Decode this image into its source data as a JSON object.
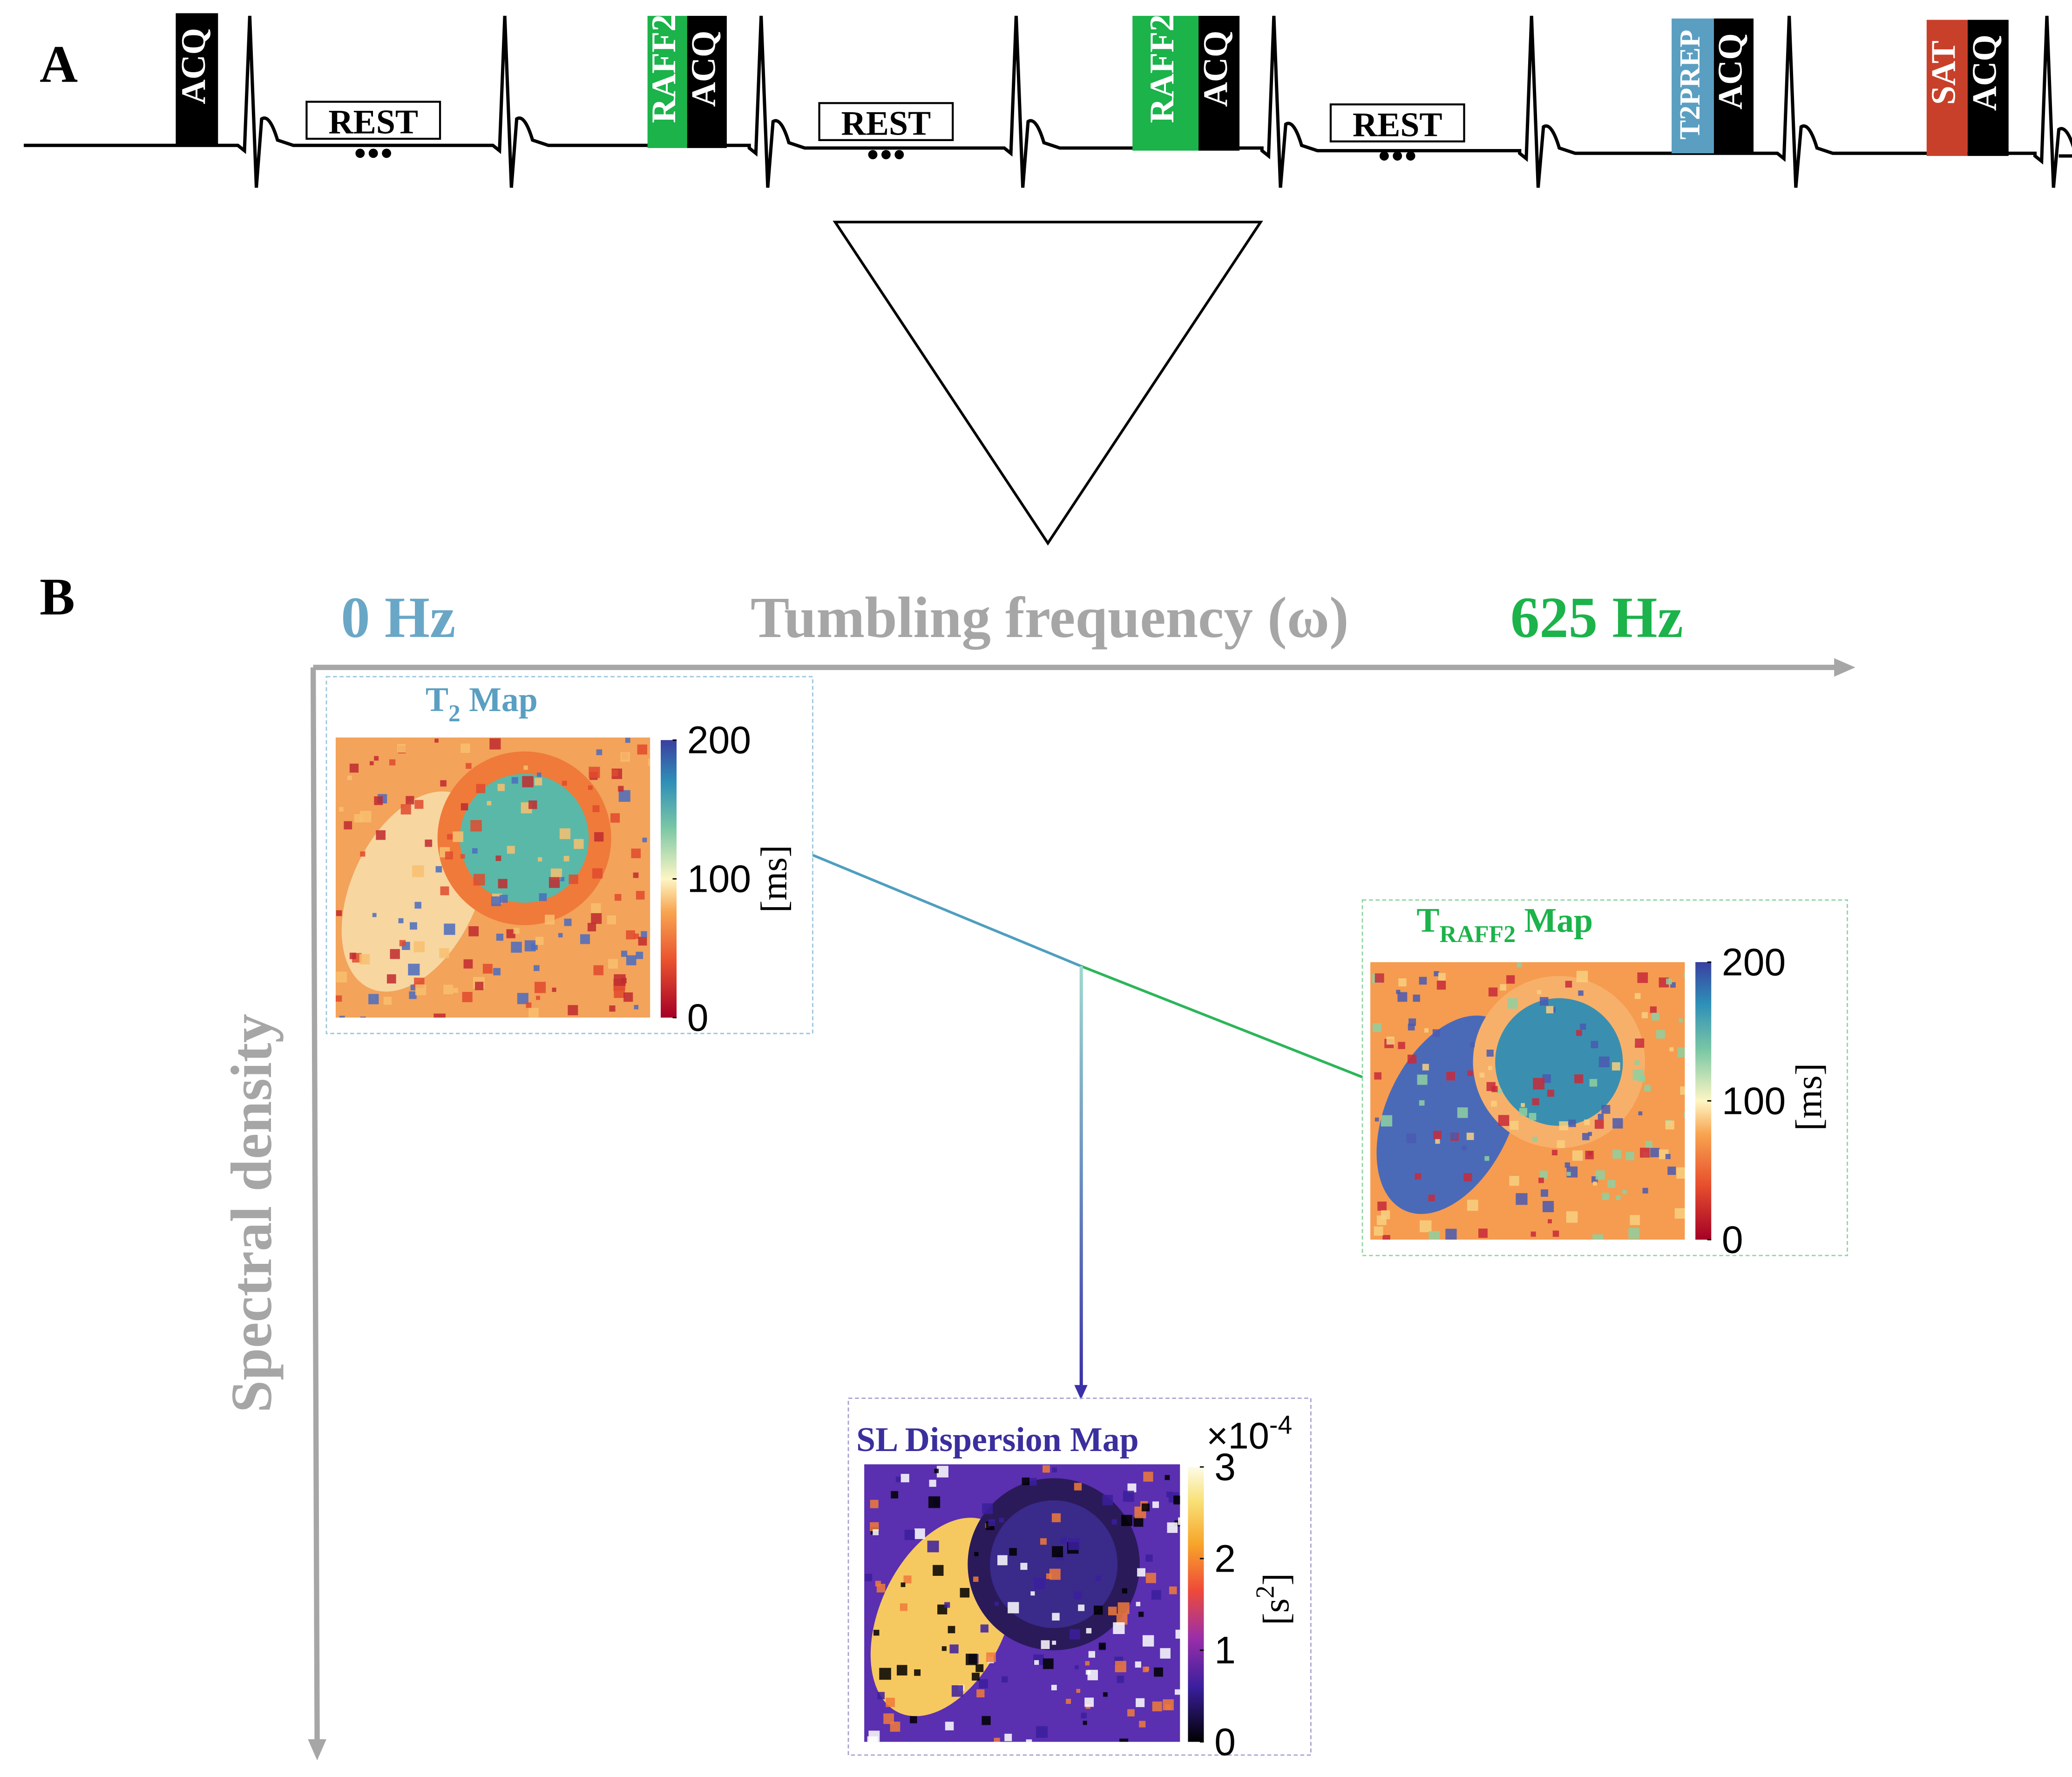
{
  "panel_a": {
    "label": "A",
    "blocks": [
      "ACQ",
      "RAFF2",
      "ACQ",
      "RAFF2",
      "ACQ",
      "T2PREP",
      "ACQ",
      "SAT",
      "ACQ"
    ],
    "rest": [
      "REST",
      "REST",
      "REST"
    ]
  },
  "panel_b": {
    "label": "B",
    "x_axis": {
      "start": "0 Hz",
      "title": "Tumbling frequency (ω)",
      "end": "625 Hz"
    },
    "y_axis": "Spectral density",
    "maps": [
      {
        "title": {
          "main": "T",
          "sub": "2",
          "rest": " Map"
        },
        "colorbar": {
          "ticks": [
            200,
            100,
            0
          ],
          "unit": {
            "main": "[ms]"
          }
        }
      },
      {
        "title": {
          "main": "T",
          "sub": "RAFF2",
          "rest": " Map"
        },
        "colorbar": {
          "ticks": [
            200,
            100,
            0
          ],
          "unit": {
            "main": "[ms]"
          }
        }
      },
      {
        "title": {
          "main": "SL Dispersion Map"
        },
        "colorbar": {
          "ticks": [
            3,
            2,
            1,
            0
          ],
          "unit": {
            "main": "[s",
            "sup": "2",
            "rest": "]"
          },
          "multiplier": {
            "main": "×10",
            "sup": "-4"
          }
        }
      }
    ]
  }
}
